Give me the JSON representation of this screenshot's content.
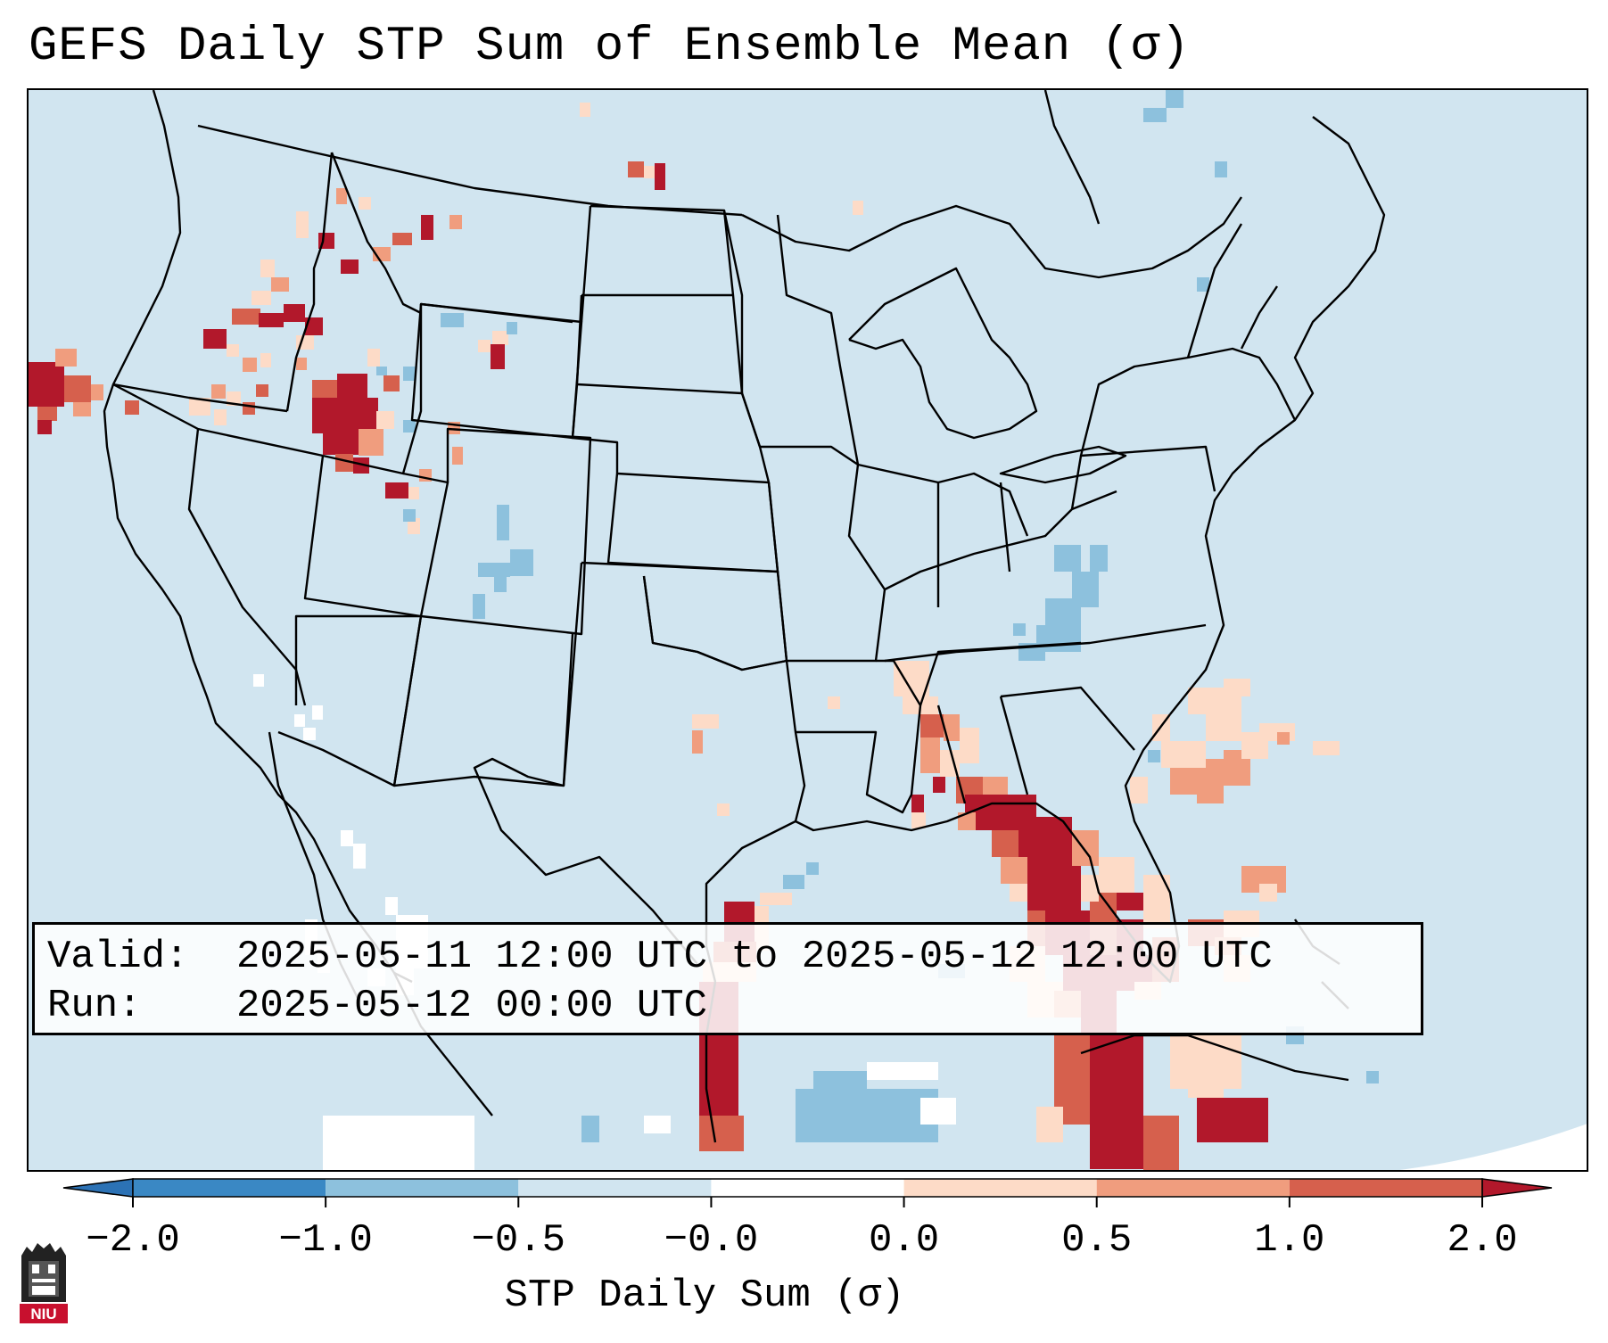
{
  "title": "GEFS Daily STP Sum of Ensemble Mean (σ)",
  "info": {
    "valid_label": "Valid:",
    "valid_value": "2025-05-11 12:00 UTC to 2025-05-12 12:00 UTC",
    "run_label": "Run:",
    "run_value": "2025-05-12 00:00 UTC"
  },
  "colorbar": {
    "label": "STP Daily Sum (σ)",
    "ticks": [
      "−2.0",
      "−1.0",
      "−0.5",
      "−0.0",
      "0.0",
      "0.5",
      "1.0",
      "2.0"
    ],
    "extend": "both",
    "bins": [
      {
        "color": "#3a88c4"
      },
      {
        "color": "#8dc1dd"
      },
      {
        "color": "#d1e5f0"
      },
      {
        "color": "#ffffff"
      },
      {
        "color": "#fddbc7"
      },
      {
        "color": "#f09d7e"
      },
      {
        "color": "#d6604d"
      }
    ],
    "under_color": "#2c72b5",
    "over_color": "#b2182b"
  },
  "map": {
    "region": "Contiguous United States",
    "background_color": "#d1e5f0",
    "outline_color": "#000000"
  },
  "logo": {
    "text": "NIU",
    "color": "#c8102e"
  }
}
